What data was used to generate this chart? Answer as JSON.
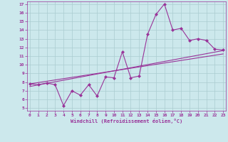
{
  "xlabel": "Windchill (Refroidissement éolien,°C)",
  "x": [
    0,
    1,
    2,
    3,
    4,
    5,
    6,
    7,
    8,
    9,
    10,
    11,
    12,
    13,
    14,
    15,
    16,
    17,
    18,
    19,
    20,
    21,
    22,
    23
  ],
  "y_data": [
    7.8,
    7.7,
    7.9,
    7.7,
    5.3,
    7.0,
    6.5,
    7.7,
    6.4,
    8.6,
    8.5,
    11.5,
    8.5,
    8.7,
    13.5,
    15.8,
    17.0,
    14.0,
    14.2,
    12.8,
    13.0,
    12.8,
    11.8,
    11.7
  ],
  "y_trend1": [
    7.5,
    7.68,
    7.86,
    8.04,
    8.22,
    8.4,
    8.58,
    8.76,
    8.94,
    9.12,
    9.3,
    9.48,
    9.66,
    9.84,
    10.02,
    10.2,
    10.38,
    10.56,
    10.74,
    10.92,
    11.1,
    11.28,
    11.46,
    11.64
  ],
  "y_trend2": [
    7.8,
    7.95,
    8.1,
    8.25,
    8.4,
    8.55,
    8.7,
    8.85,
    9.0,
    9.15,
    9.3,
    9.45,
    9.6,
    9.75,
    9.9,
    10.05,
    10.2,
    10.35,
    10.5,
    10.65,
    10.8,
    10.95,
    11.1,
    11.25
  ],
  "line_color": "#993399",
  "bg_color": "#cce8ec",
  "grid_color": "#aaccd0",
  "text_color": "#993399",
  "ylim_min": 5,
  "ylim_max": 17,
  "xlim_min": 0,
  "xlim_max": 23,
  "yticks": [
    5,
    6,
    7,
    8,
    9,
    10,
    11,
    12,
    13,
    14,
    15,
    16,
    17
  ],
  "xticks": [
    0,
    1,
    2,
    3,
    4,
    5,
    6,
    7,
    8,
    9,
    10,
    11,
    12,
    13,
    14,
    15,
    16,
    17,
    18,
    19,
    20,
    21,
    22,
    23
  ]
}
